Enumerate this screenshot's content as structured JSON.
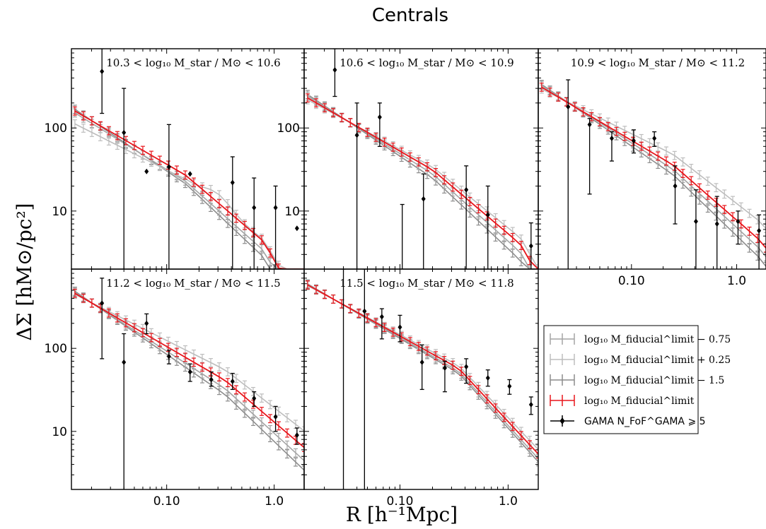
{
  "figure": {
    "title": "Centrals",
    "ylabel": "ΔΣ [hM⊙/pc²]",
    "xlabel": "R [h⁻¹Mpc]"
  },
  "colors": {
    "red": "#e8151b",
    "gray_dark": "#8c8c8c",
    "gray_mid": "#a4a4a4",
    "gray_light": "#bdbdbd",
    "black": "#000000"
  },
  "legend": {
    "placement": "lower-right",
    "entries": [
      {
        "label": "log₁₀ M_fiducial^limit − 0.75",
        "color": "#a4a4a4",
        "marker": "errorbar"
      },
      {
        "label": "log₁₀ M_fiducial^limit + 0.25",
        "color": "#bdbdbd",
        "marker": "errorbar"
      },
      {
        "label": "log₁₀ M_fiducial^limit − 1.5",
        "color": "#8c8c8c",
        "marker": "errorbar"
      },
      {
        "label": "log₁₀ M_fiducial^limit",
        "color": "#e8151b",
        "marker": "errorbar"
      },
      {
        "label": "GAMA N_FoF^GAMA ⩾ 5",
        "color": "#000000",
        "marker": "diamond"
      }
    ]
  },
  "chart_data": [
    {
      "type": "line",
      "annotation": "10.3 < log₁₀ M_star / M⊙ < 10.6",
      "xscale": "log",
      "yscale": "log",
      "xlim": [
        0.013,
        1.9
      ],
      "ylim": [
        2,
        900
      ],
      "xticks": [
        "0.10",
        "1.0"
      ],
      "yticks": [
        "10",
        "100"
      ],
      "model": {
        "x0": 0.014,
        "x1": 1.9,
        "y0": 160,
        "k1": 0.75,
        "xb": 0.15,
        "k2": 1.1,
        "cut": 0.8
      },
      "variants": {
        "m075": {
          "dy": 0.95,
          "dk": 0.05
        },
        "p025": {
          "dy": 0.7,
          "dk": -0.1,
          "bump": 0.35
        },
        "m15": {
          "dy": 1.05,
          "dk": 0.12
        }
      },
      "gama": {
        "x": [
          0.025,
          0.04,
          0.065,
          0.105,
          0.165,
          0.41,
          0.65,
          1.03,
          1.63
        ],
        "y": [
          480,
          88,
          30,
          34,
          28,
          22,
          11,
          11,
          6.2
        ],
        "ylo": [
          150,
          2,
          2,
          2,
          2,
          2,
          2,
          2,
          2
        ],
        "yhi": [
          900,
          300,
          2,
          110,
          2,
          45,
          25,
          20,
          2
        ]
      }
    },
    {
      "type": "line",
      "annotation": "10.6 < log₁₀ M_star / M⊙ < 10.9",
      "xscale": "log",
      "yscale": "log",
      "xlim": [
        0.013,
        1.9
      ],
      "ylim": [
        2,
        900
      ],
      "xticks": [
        "0.10",
        "1.0"
      ],
      "yticks": [
        "10",
        "100"
      ],
      "model": {
        "x0": 0.014,
        "x1": 1.9,
        "y0": 230,
        "k1": 0.75,
        "xb": 0.2,
        "k2": 1.1,
        "cut": 1.3
      },
      "variants": {
        "m075": {
          "dy": 1.05,
          "dk": 0.06
        },
        "p025": {
          "dy": 0.95,
          "dk": -0.05
        },
        "m15": {
          "dy": 1.1,
          "dk": 0.12
        }
      },
      "gama": {
        "x": [
          0.025,
          0.04,
          0.065,
          0.105,
          0.165,
          0.26,
          0.41,
          0.65,
          1.03,
          1.63
        ],
        "y": [
          500,
          82,
          135,
          2,
          14,
          2,
          18,
          9,
          2,
          3.8
        ],
        "ylo": [
          240,
          2,
          60,
          2,
          2,
          2,
          2,
          2,
          2,
          2
        ],
        "yhi": [
          900,
          200,
          200,
          12,
          28,
          2,
          35,
          20,
          2,
          7.2
        ]
      }
    },
    {
      "type": "line",
      "annotation": "10.9 < log₁₀ M_star / M⊙ < 11.2",
      "xscale": "log",
      "yscale": "log",
      "xlim": [
        0.013,
        1.9
      ],
      "ylim": [
        2,
        900
      ],
      "xticks": [
        "0.10",
        "1.0"
      ],
      "yticks": [],
      "model": {
        "x0": 0.014,
        "x1": 1.9,
        "y0": 310,
        "k1": 0.75,
        "xb": 0.25,
        "k2": 1.1,
        "cut": 1.8
      },
      "variants": {
        "m075": {
          "dy": 1.05,
          "dk": 0.06
        },
        "p025": {
          "dy": 0.95,
          "dk": -0.12
        },
        "m15": {
          "dy": 1.08,
          "dk": 0.12
        }
      },
      "gama": {
        "x": [
          0.025,
          0.04,
          0.065,
          0.105,
          0.165,
          0.26,
          0.41,
          0.65,
          1.03,
          1.63
        ],
        "y": [
          180,
          110,
          75,
          70,
          75,
          20,
          7.5,
          7,
          7.5,
          5.8
        ],
        "ylo": [
          2,
          16,
          40,
          50,
          60,
          7,
          2,
          2,
          4,
          2
        ],
        "yhi": [
          380,
          130,
          90,
          95,
          90,
          35,
          18,
          15,
          10,
          9
        ]
      }
    },
    {
      "type": "line",
      "annotation": "11.2 < log₁₀ M_star / M⊙ < 11.5",
      "xscale": "log",
      "yscale": "log",
      "xlim": [
        0.013,
        1.9
      ],
      "ylim": [
        2,
        900
      ],
      "xticks": [
        "0.10",
        "1.0"
      ],
      "yticks": [
        "10",
        "100"
      ],
      "model": {
        "x0": 0.014,
        "x1": 1.9,
        "y0": 460,
        "k1": 0.75,
        "xb": 0.35,
        "k2": 1.1,
        "cut": 99
      },
      "variants": {
        "m075": {
          "dy": 1.03,
          "dk": 0.08
        },
        "p025": {
          "dy": 0.97,
          "dk": -0.1
        },
        "m15": {
          "dy": 1.06,
          "dk": 0.14
        }
      },
      "gama": {
        "x": [
          0.025,
          0.04,
          0.065,
          0.105,
          0.165,
          0.26,
          0.41,
          0.65,
          1.03,
          1.63
        ],
        "y": [
          350,
          68,
          200,
          80,
          52,
          42,
          40,
          25,
          15,
          9
        ],
        "ylo": [
          75,
          2,
          150,
          65,
          40,
          35,
          32,
          20,
          10,
          7
        ],
        "yhi": [
          700,
          150,
          260,
          95,
          65,
          52,
          50,
          30,
          20,
          11
        ]
      }
    },
    {
      "type": "line",
      "annotation": "11.5 < log₁₀ M_star / M⊙ < 11.8",
      "xscale": "log",
      "yscale": "log",
      "xlim": [
        0.013,
        1.9
      ],
      "ylim": [
        2,
        900
      ],
      "xticks": [
        "0.10",
        "1.0"
      ],
      "yticks": [],
      "model": {
        "x0": 0.014,
        "x1": 1.9,
        "y0": 580,
        "k1": 0.72,
        "xb": 0.35,
        "k2": 1.4,
        "cut": 99
      },
      "variants": {
        "m075": {
          "dy": 1.02,
          "dk": 0.03
        },
        "p025": {
          "dy": 0.98,
          "dk": -0.03
        },
        "m15": {
          "dy": 1.03,
          "dk": 0.05
        }
      },
      "gama": {
        "x": [
          0.03,
          0.047,
          0.068,
          0.1,
          0.16,
          0.26,
          0.41,
          0.65,
          1.03,
          1.63
        ],
        "y": [
          2,
          280,
          240,
          180,
          68,
          58,
          60,
          44,
          35,
          21
        ],
        "ylo": [
          2,
          2,
          130,
          120,
          32,
          30,
          38,
          35,
          28,
          16
        ],
        "yhi": [
          900,
          900,
          300,
          250,
          110,
          70,
          75,
          55,
          42,
          26
        ]
      }
    }
  ]
}
